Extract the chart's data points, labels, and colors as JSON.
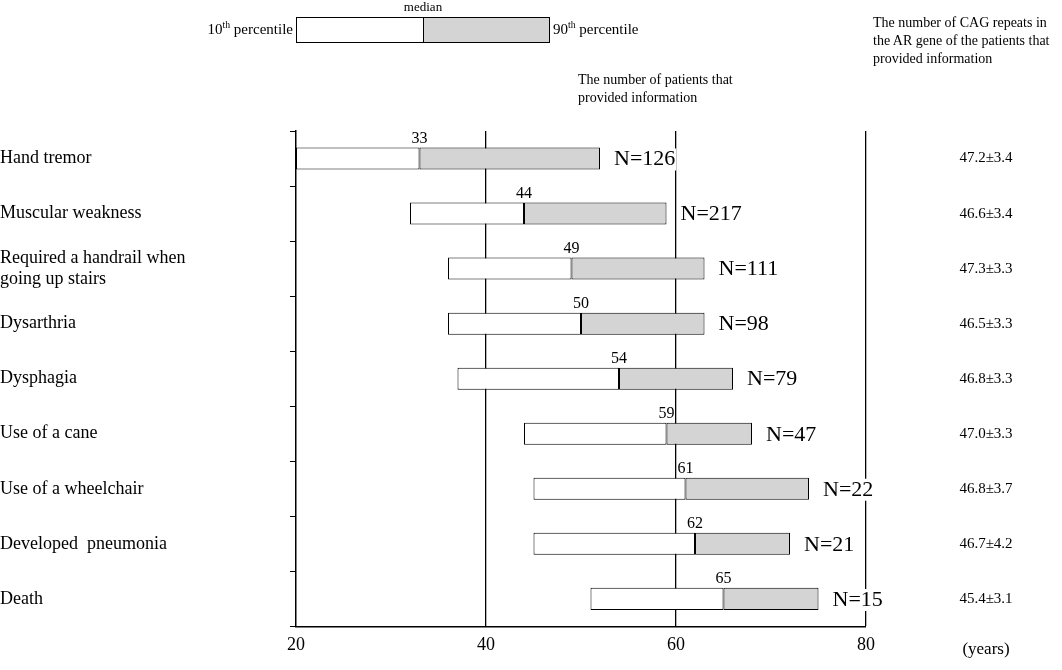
{
  "chart_data": {
    "type": "bar",
    "orientation": "horizontal",
    "categories": [
      "Hand tremor",
      "Muscular weakness",
      "Required a handrail when going up stairs",
      "Dysarthria",
      "Dysphagia",
      "Use of a cane",
      "Use of a wheelchair",
      "Developed  pneumonia",
      "Death"
    ],
    "series": [
      {
        "color": "#ffffff",
        "base": [
          20,
          32,
          36,
          36,
          37,
          44,
          45,
          45,
          51
        ],
        "values": [
          13,
          12,
          13,
          14,
          17,
          15,
          16,
          17,
          14
        ]
      },
      {
        "color": "#d4d4d4",
        "base": [
          33,
          44,
          49,
          50,
          54,
          59,
          61,
          62,
          65
        ],
        "values": [
          19,
          15,
          14,
          13,
          12,
          9,
          13,
          10,
          10
        ]
      }
    ],
    "xlim": [
      20,
      80
    ],
    "xticks": [
      20,
      40,
      60,
      80
    ],
    "grid": "x",
    "annotations": [
      "median",
      "10$^{th}$ percentile",
      "90$^{th}$ percentile",
      "The number of patients that provided information",
      "The number of CAG repeats in the AR gene of the patients that provided information",
      "33",
      "44",
      "49",
      "50",
      "54",
      "59",
      "61",
      "62",
      "65",
      "N=126",
      "N=217",
      "N=111",
      "N=98",
      "N=79",
      "N=47",
      "N=22",
      "N=21",
      "N=15",
      "47.2±3.4",
      "46.6±3.4",
      "47.3±3.3",
      "46.5±3.3",
      "46.8±3.3",
      "47.0±3.3",
      "46.8±3.7",
      "46.7±4.2",
      "45.4±3.1",
      "(years)"
    ]
  }
}
